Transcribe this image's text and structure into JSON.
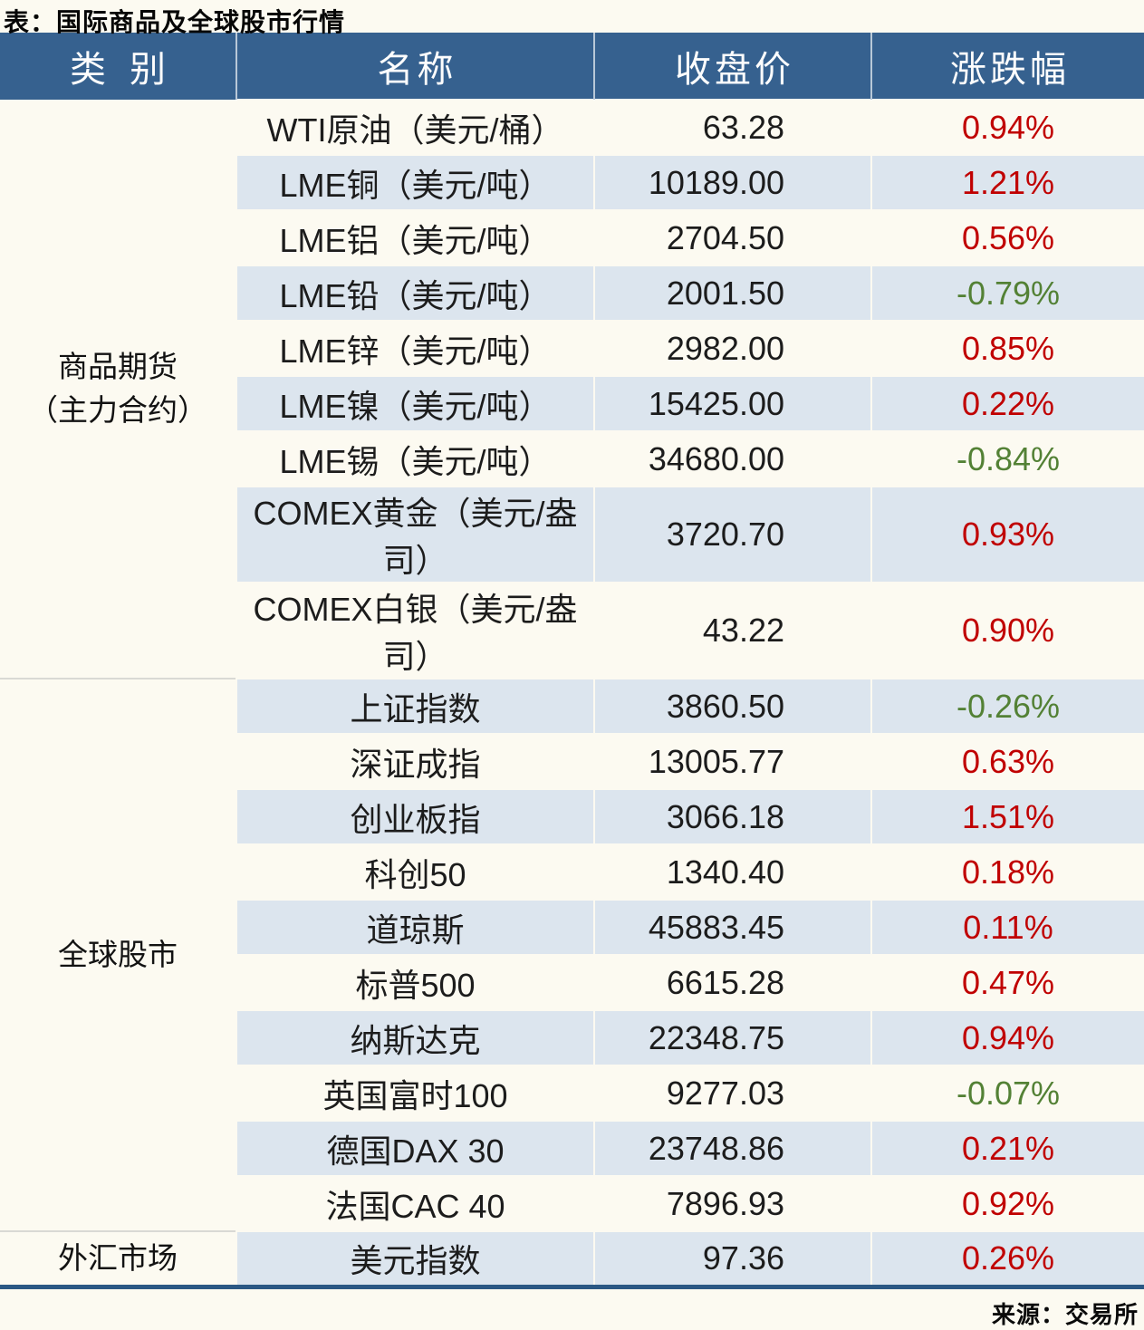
{
  "title": "表：国际商品及全球股市行情",
  "source": "来源：交易所",
  "colors": {
    "header_bg": "#36618F",
    "alt_row_bg": "#DCE5EE",
    "page_bg": "#FCFAF1",
    "up_red": "#C00000",
    "down_green": "#538135",
    "bottom_rule": "#2B5884"
  },
  "table": {
    "headers": [
      "类别",
      "名称",
      "收盘价",
      "涨跌幅"
    ],
    "groups": [
      {
        "category": "商品期货",
        "category_line2": "（主力合约）",
        "rows": [
          {
            "name": "WTI原油（美元/桶）",
            "close": "63.28",
            "change": "0.94%",
            "dir": "up"
          },
          {
            "name": "LME铜（美元/吨）",
            "close": "10189.00",
            "change": "1.21%",
            "dir": "up"
          },
          {
            "name": "LME铝（美元/吨）",
            "close": "2704.50",
            "change": "0.56%",
            "dir": "up"
          },
          {
            "name": "LME铅（美元/吨）",
            "close": "2001.50",
            "change": "-0.79%",
            "dir": "down"
          },
          {
            "name": "LME锌（美元/吨）",
            "close": "2982.00",
            "change": "0.85%",
            "dir": "up"
          },
          {
            "name": "LME镍（美元/吨）",
            "close": "15425.00",
            "change": "0.22%",
            "dir": "up"
          },
          {
            "name": "LME锡（美元/吨）",
            "close": "34680.00",
            "change": "-0.84%",
            "dir": "down"
          },
          {
            "name": "COMEX黄金（美元/盎司）",
            "close": "3720.70",
            "change": "0.93%",
            "dir": "up"
          },
          {
            "name": "COMEX白银（美元/盎司）",
            "close": "43.22",
            "change": "0.90%",
            "dir": "up"
          }
        ]
      },
      {
        "category": "全球股市",
        "category_line2": "",
        "rows": [
          {
            "name": "上证指数",
            "close": "3860.50",
            "change": "-0.26%",
            "dir": "down"
          },
          {
            "name": "深证成指",
            "close": "13005.77",
            "change": "0.63%",
            "dir": "up"
          },
          {
            "name": "创业板指",
            "close": "3066.18",
            "change": "1.51%",
            "dir": "up"
          },
          {
            "name": "科创50",
            "close": "1340.40",
            "change": "0.18%",
            "dir": "up"
          },
          {
            "name": "道琼斯",
            "close": "45883.45",
            "change": "0.11%",
            "dir": "up"
          },
          {
            "name": "标普500",
            "close": "6615.28",
            "change": "0.47%",
            "dir": "up"
          },
          {
            "name": "纳斯达克",
            "close": "22348.75",
            "change": "0.94%",
            "dir": "up"
          },
          {
            "name": "英国富时100",
            "close": "9277.03",
            "change": "-0.07%",
            "dir": "down"
          },
          {
            "name": "德国DAX 30",
            "close": "23748.86",
            "change": "0.21%",
            "dir": "up"
          },
          {
            "name": "法国CAC 40",
            "close": "7896.93",
            "change": "0.92%",
            "dir": "up"
          }
        ]
      },
      {
        "category": "外汇市场",
        "category_line2": "",
        "rows": [
          {
            "name": "美元指数",
            "close": "97.36",
            "change": "0.26%",
            "dir": "up"
          }
        ]
      }
    ]
  },
  "chart_data": {
    "type": "table",
    "title": "表：国际商品及全球股市行情",
    "columns": [
      "类别",
      "名称",
      "收盘价",
      "涨跌幅"
    ],
    "rows": [
      [
        "商品期货（主力合约）",
        "WTI原油（美元/桶）",
        63.28,
        "0.94%"
      ],
      [
        "商品期货（主力合约）",
        "LME铜（美元/吨）",
        10189.0,
        "1.21%"
      ],
      [
        "商品期货（主力合约）",
        "LME铝（美元/吨）",
        2704.5,
        "0.56%"
      ],
      [
        "商品期货（主力合约）",
        "LME铅（美元/吨）",
        2001.5,
        "-0.79%"
      ],
      [
        "商品期货（主力合约）",
        "LME锌（美元/吨）",
        2982.0,
        "0.85%"
      ],
      [
        "商品期货（主力合约）",
        "LME镍（美元/吨）",
        15425.0,
        "0.22%"
      ],
      [
        "商品期货（主力合约）",
        "LME锡（美元/吨）",
        34680.0,
        "-0.84%"
      ],
      [
        "商品期货（主力合约）",
        "COMEX黄金（美元/盎司）",
        3720.7,
        "0.93%"
      ],
      [
        "商品期货（主力合约）",
        "COMEX白银（美元/盎司）",
        43.22,
        "0.90%"
      ],
      [
        "全球股市",
        "上证指数",
        3860.5,
        "-0.26%"
      ],
      [
        "全球股市",
        "深证成指",
        13005.77,
        "0.63%"
      ],
      [
        "全球股市",
        "创业板指",
        3066.18,
        "1.51%"
      ],
      [
        "全球股市",
        "科创50",
        1340.4,
        "0.18%"
      ],
      [
        "全球股市",
        "道琼斯",
        45883.45,
        "0.11%"
      ],
      [
        "全球股市",
        "标普500",
        6615.28,
        "0.47%"
      ],
      [
        "全球股市",
        "纳斯达克",
        22348.75,
        "0.94%"
      ],
      [
        "全球股市",
        "英国富时100",
        9277.03,
        "-0.07%"
      ],
      [
        "全球股市",
        "德国DAX 30",
        23748.86,
        "0.21%"
      ],
      [
        "全球股市",
        "法国CAC 40",
        7896.93,
        "0.92%"
      ],
      [
        "外汇市场",
        "美元指数",
        97.36,
        "0.26%"
      ]
    ],
    "source": "来源：交易所",
    "style_notes": "positive change = red, negative change = green, alternating row shading"
  }
}
